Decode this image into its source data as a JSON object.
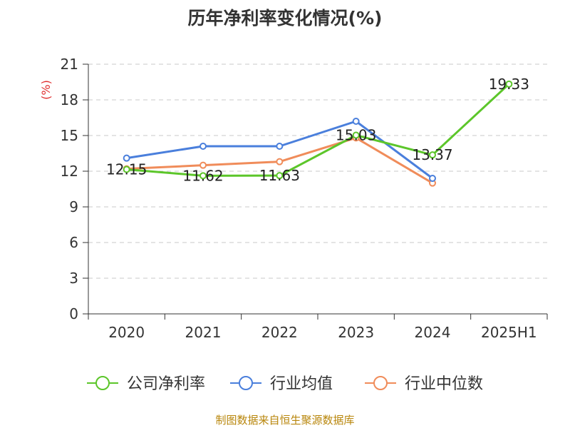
{
  "chart_data": {
    "type": "line",
    "title": "历年净利率变化情况(%)",
    "ylabel": "(%)",
    "xlabel": "",
    "categories": [
      "2020",
      "2021",
      "2022",
      "2023",
      "2024",
      "2025H1"
    ],
    "ylim": [
      0,
      21
    ],
    "yticks": [
      0,
      3,
      6,
      9,
      12,
      15,
      18,
      21
    ],
    "grid": true,
    "legend_position": "bottom",
    "series": [
      {
        "name": "公司净利率",
        "color": "#5cc62a",
        "values": [
          12.15,
          11.62,
          11.63,
          15.03,
          13.37,
          19.33
        ],
        "labels": [
          "12.15",
          "11.62",
          "11.63",
          "15.03",
          "13.37",
          "19.33"
        ]
      },
      {
        "name": "行业均值",
        "color": "#4a7fdc",
        "values": [
          13.1,
          14.1,
          14.1,
          16.2,
          11.4,
          null
        ]
      },
      {
        "name": "行业中位数",
        "color": "#f08c5a",
        "values": [
          12.2,
          12.5,
          12.8,
          14.8,
          11.0,
          null
        ]
      }
    ],
    "source": "制图数据来自恒生聚源数据库"
  }
}
